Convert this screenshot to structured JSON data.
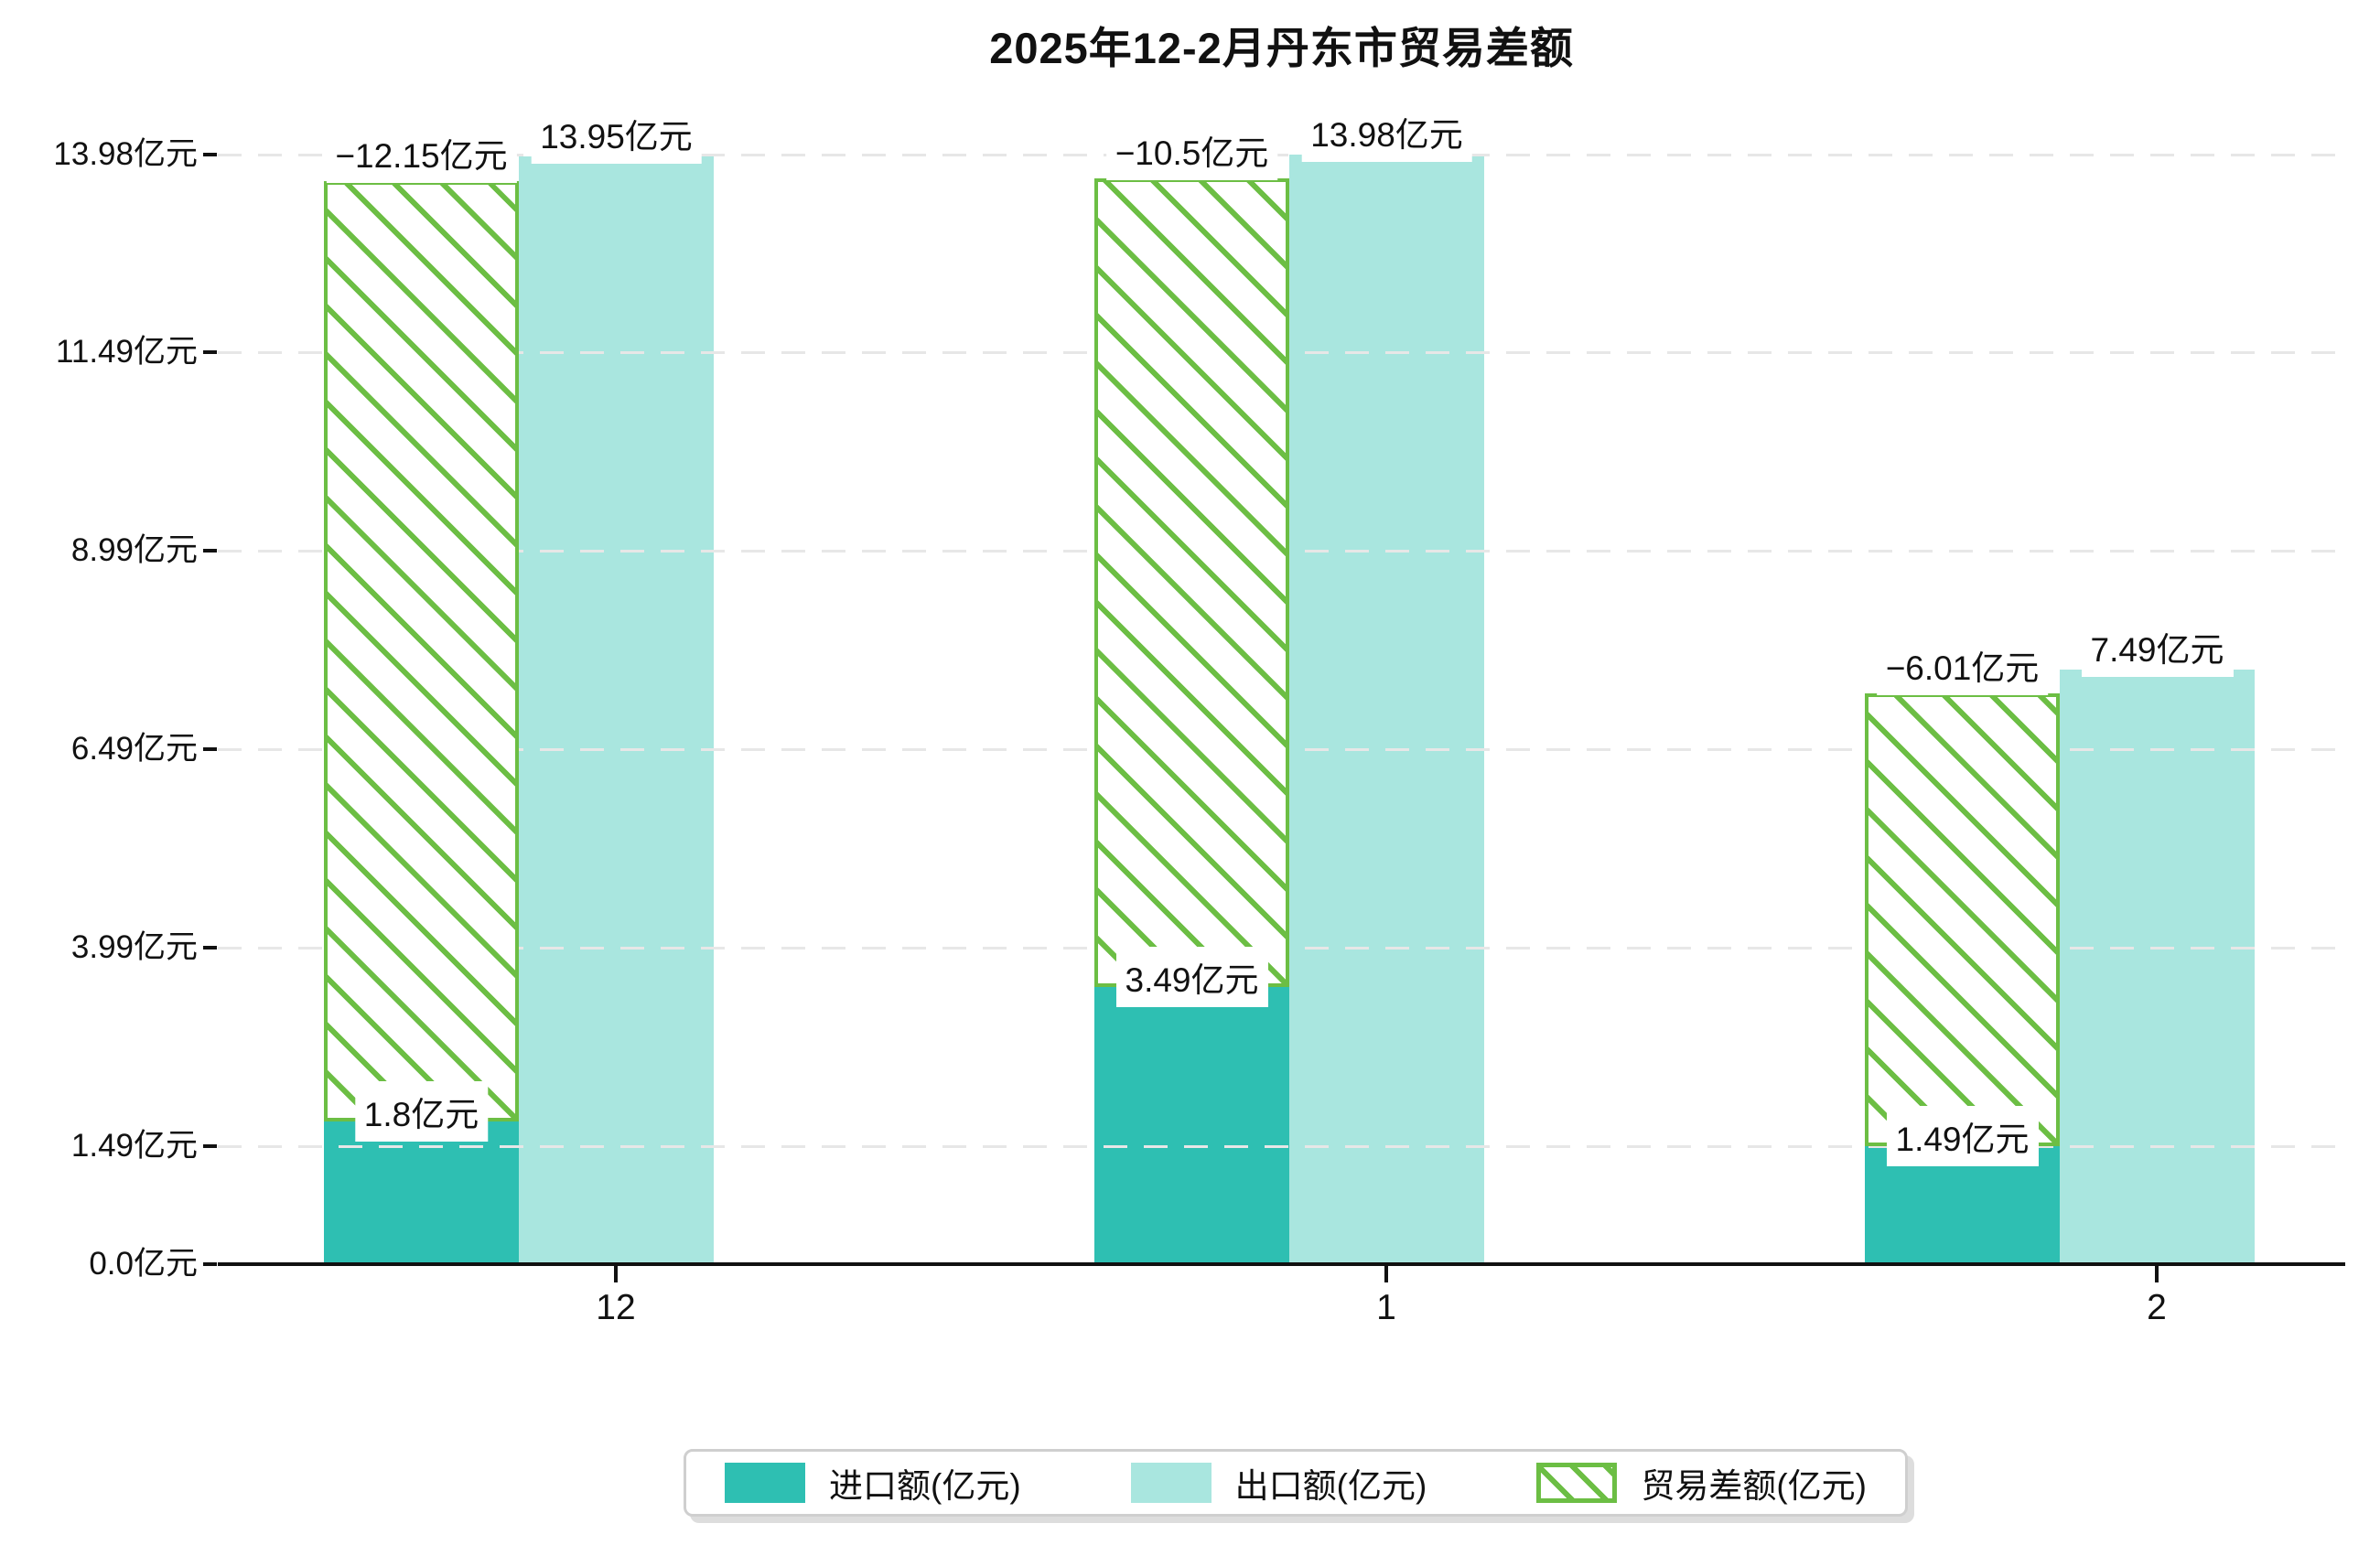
{
  "title": "2025年12-2月丹东市贸易差额",
  "unit": "亿元",
  "chart_data": {
    "type": "bar",
    "title": "2025年12-2月丹东市贸易差额",
    "categories": [
      "12",
      "1",
      "2"
    ],
    "series": [
      {
        "key": "import",
        "name": "进口额(亿元)",
        "values": [
          1.8,
          3.49,
          1.49
        ],
        "data_labels": [
          "1.8亿元",
          "3.49亿元",
          "1.49亿元"
        ],
        "color": "#2ebfb2",
        "style": "solid"
      },
      {
        "key": "export",
        "name": "出口额(亿元)",
        "values": [
          13.95,
          13.98,
          7.49
        ],
        "data_labels": [
          "13.95亿元",
          "13.98亿元",
          "7.49亿元"
        ],
        "color": "#a9e6df",
        "style": "solid"
      },
      {
        "key": "balance",
        "name": "贸易差额(亿元)",
        "values": [
          -12.15,
          -10.5,
          -6.01
        ],
        "data_labels": [
          "−12.15亿元",
          "−10.5亿元",
          "−6.01亿元"
        ],
        "color": "#6cbe44",
        "style": "hatched"
      }
    ],
    "y_axis": {
      "tick_labels": [
        "0.0亿元",
        "1.49亿元",
        "3.99亿元",
        "6.49亿元",
        "8.99亿元",
        "11.49亿元",
        "13.98亿元"
      ],
      "tick_values": [
        0,
        1.49,
        3.99,
        6.49,
        8.99,
        11.49,
        13.98
      ],
      "range": [
        0,
        14.8
      ]
    },
    "x_axis": {
      "tick_labels": [
        "12",
        "1",
        "2"
      ]
    },
    "grid": {
      "horizontal": true,
      "style": "dashed",
      "color": "#e7e7e7"
    },
    "legend": {
      "position": "bottom-center",
      "entries": [
        "进口额(亿元)",
        "出口额(亿元)",
        "贸易差额(亿元)"
      ]
    }
  }
}
